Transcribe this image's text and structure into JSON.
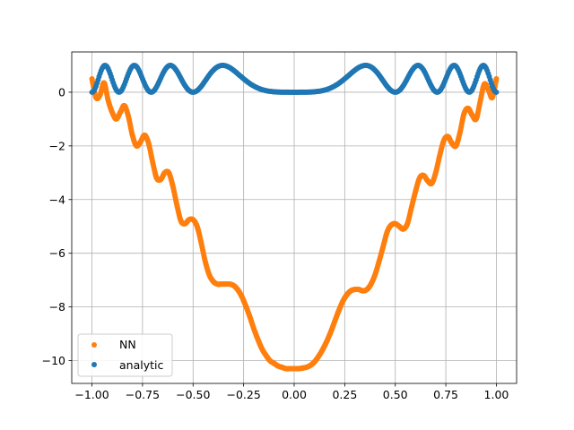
{
  "chart_data": {
    "type": "scatter",
    "title": "",
    "xlabel": "",
    "ylabel": "",
    "xlim": [
      -1.1,
      1.1
    ],
    "ylim": [
      -10.85,
      1.5
    ],
    "grid": true,
    "legend_placement": "lower-left",
    "x_ticks": [
      "−1.00",
      "−0.75",
      "−0.50",
      "−0.25",
      "0.00",
      "0.25",
      "0.50",
      "0.75",
      "1.00"
    ],
    "x_tick_values": [
      -1.0,
      -0.75,
      -0.5,
      -0.25,
      0.0,
      0.25,
      0.5,
      0.75,
      1.0
    ],
    "y_ticks": [
      "−10",
      "−8",
      "−6",
      "−4",
      "−2",
      "0"
    ],
    "y_tick_values": [
      -10,
      -8,
      -6,
      -4,
      -2,
      0
    ],
    "series": [
      {
        "name": "NN",
        "color": "#ff7f0e",
        "points": [
          [
            -1.0,
            0.5
          ],
          [
            -0.98,
            -0.2
          ],
          [
            -0.96,
            -0.1
          ],
          [
            -0.94,
            0.35
          ],
          [
            -0.92,
            -0.3
          ],
          [
            -0.9,
            -0.75
          ],
          [
            -0.88,
            -1.0
          ],
          [
            -0.86,
            -0.75
          ],
          [
            -0.84,
            -0.5
          ],
          [
            -0.82,
            -0.9
          ],
          [
            -0.8,
            -1.6
          ],
          [
            -0.78,
            -2.0
          ],
          [
            -0.76,
            -1.85
          ],
          [
            -0.74,
            -1.6
          ],
          [
            -0.72,
            -1.9
          ],
          [
            -0.7,
            -2.6
          ],
          [
            -0.68,
            -3.2
          ],
          [
            -0.66,
            -3.25
          ],
          [
            -0.64,
            -3.0
          ],
          [
            -0.62,
            -3.0
          ],
          [
            -0.6,
            -3.5
          ],
          [
            -0.58,
            -4.2
          ],
          [
            -0.56,
            -4.8
          ],
          [
            -0.54,
            -4.9
          ],
          [
            -0.52,
            -4.75
          ],
          [
            -0.5,
            -4.75
          ],
          [
            -0.48,
            -5.0
          ],
          [
            -0.46,
            -5.6
          ],
          [
            -0.44,
            -6.3
          ],
          [
            -0.42,
            -6.8
          ],
          [
            -0.4,
            -7.05
          ],
          [
            -0.38,
            -7.15
          ],
          [
            -0.36,
            -7.15
          ],
          [
            -0.34,
            -7.15
          ],
          [
            -0.32,
            -7.15
          ],
          [
            -0.3,
            -7.2
          ],
          [
            -0.28,
            -7.35
          ],
          [
            -0.26,
            -7.6
          ],
          [
            -0.24,
            -7.95
          ],
          [
            -0.22,
            -8.35
          ],
          [
            -0.2,
            -8.8
          ],
          [
            -0.18,
            -9.2
          ],
          [
            -0.16,
            -9.55
          ],
          [
            -0.14,
            -9.8
          ],
          [
            -0.12,
            -10.0
          ],
          [
            -0.1,
            -10.1
          ],
          [
            -0.08,
            -10.2
          ],
          [
            -0.06,
            -10.25
          ],
          [
            -0.04,
            -10.3
          ],
          [
            -0.02,
            -10.3
          ],
          [
            0.0,
            -10.3
          ],
          [
            0.02,
            -10.3
          ],
          [
            0.04,
            -10.28
          ],
          [
            0.06,
            -10.25
          ],
          [
            0.08,
            -10.18
          ],
          [
            0.1,
            -10.05
          ],
          [
            0.12,
            -9.85
          ],
          [
            0.14,
            -9.6
          ],
          [
            0.16,
            -9.3
          ],
          [
            0.18,
            -8.95
          ],
          [
            0.2,
            -8.55
          ],
          [
            0.22,
            -8.15
          ],
          [
            0.24,
            -7.8
          ],
          [
            0.26,
            -7.55
          ],
          [
            0.28,
            -7.4
          ],
          [
            0.3,
            -7.35
          ],
          [
            0.32,
            -7.35
          ],
          [
            0.34,
            -7.4
          ],
          [
            0.36,
            -7.35
          ],
          [
            0.38,
            -7.15
          ],
          [
            0.4,
            -6.8
          ],
          [
            0.42,
            -6.3
          ],
          [
            0.44,
            -5.75
          ],
          [
            0.46,
            -5.2
          ],
          [
            0.48,
            -4.95
          ],
          [
            0.5,
            -4.9
          ],
          [
            0.52,
            -5.0
          ],
          [
            0.54,
            -5.1
          ],
          [
            0.56,
            -4.9
          ],
          [
            0.58,
            -4.3
          ],
          [
            0.6,
            -3.7
          ],
          [
            0.62,
            -3.2
          ],
          [
            0.64,
            -3.1
          ],
          [
            0.66,
            -3.3
          ],
          [
            0.68,
            -3.4
          ],
          [
            0.7,
            -3.0
          ],
          [
            0.72,
            -2.35
          ],
          [
            0.74,
            -1.8
          ],
          [
            0.76,
            -1.65
          ],
          [
            0.78,
            -1.9
          ],
          [
            0.8,
            -2.0
          ],
          [
            0.82,
            -1.5
          ],
          [
            0.84,
            -0.8
          ],
          [
            0.86,
            -0.6
          ],
          [
            0.88,
            -0.85
          ],
          [
            0.9,
            -1.0
          ],
          [
            0.92,
            -0.35
          ],
          [
            0.94,
            0.3
          ],
          [
            0.96,
            0.1
          ],
          [
            0.98,
            -0.2
          ],
          [
            1.0,
            0.5
          ]
        ]
      },
      {
        "name": "analytic",
        "color": "#1f77b4",
        "function": "sin^2(4*pi*x^2)",
        "x_range": [
          -1.0,
          1.0
        ],
        "n_points": 400
      }
    ],
    "legend": [
      "NN",
      "analytic"
    ]
  }
}
